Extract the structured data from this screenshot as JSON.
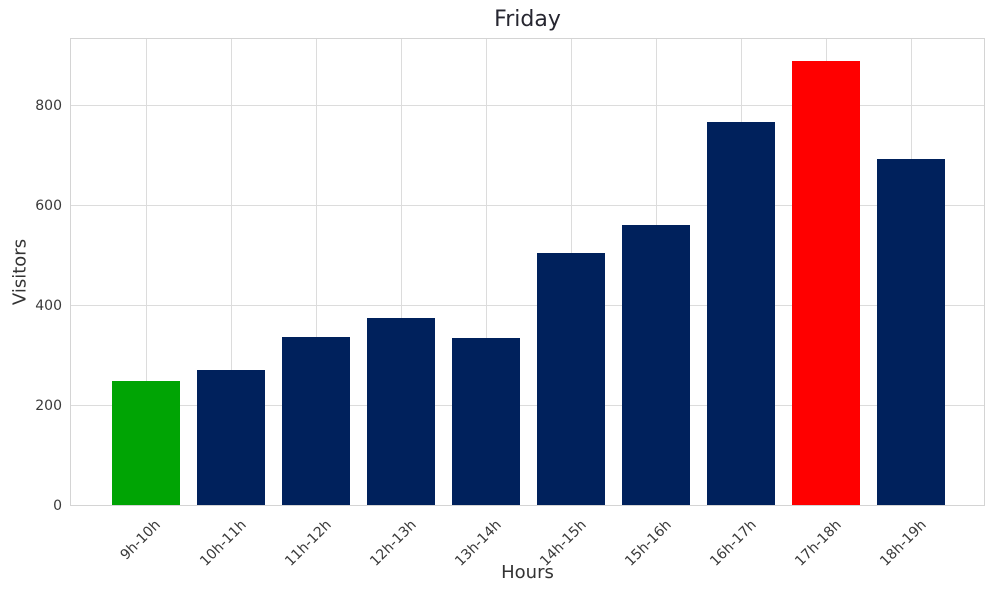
{
  "chart_data": {
    "type": "bar",
    "title": "Friday",
    "xlabel": "Hours",
    "ylabel": "Visitors",
    "categories": [
      "9h-10h",
      "10h-11h",
      "11h-12h",
      "12h-13h",
      "13h-14h",
      "14h-15h",
      "15h-16h",
      "16h-17h",
      "17h-18h",
      "18h-19h"
    ],
    "values": [
      247,
      269,
      336,
      373,
      334,
      503,
      559,
      765,
      887,
      691
    ],
    "bar_colors": [
      "#00A404",
      "#00215C",
      "#00215C",
      "#00215C",
      "#00215C",
      "#00215C",
      "#00215C",
      "#00215C",
      "#FF0000",
      "#00215C"
    ],
    "yticks": [
      0,
      200,
      400,
      600,
      800
    ],
    "ylim": [
      0,
      936
    ],
    "grid": true,
    "legend": null,
    "colors": {
      "default_bar": "#00215C",
      "first_bar_highlight": "#00A404",
      "max_bar_highlight": "#FF0000",
      "grid": "#dcdcdc",
      "spine": "#d4d4d4",
      "tick_text": "#3a3a3a",
      "axis_label_text": "#333333",
      "title_text": "#262630",
      "background": "#ffffff"
    }
  }
}
